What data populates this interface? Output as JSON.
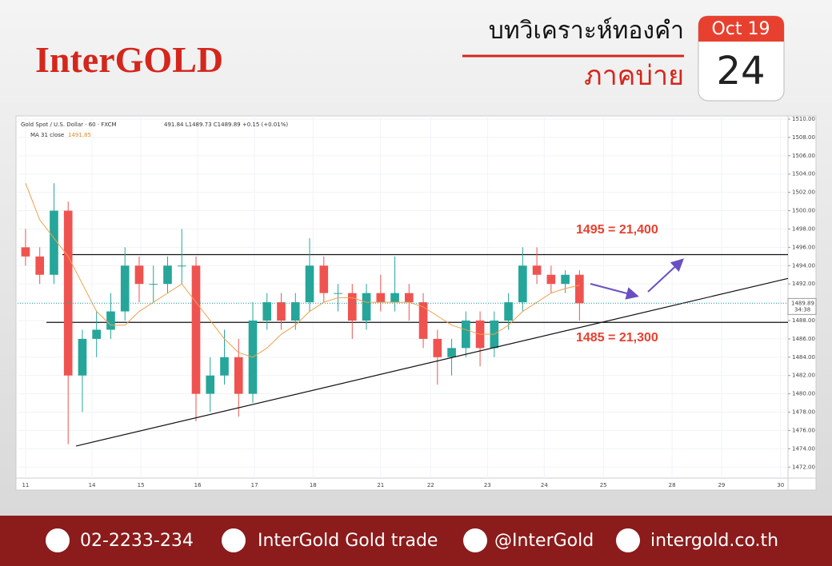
{
  "brand": "InterGOLD",
  "heading": "บทวิเคราะห์ทองคำ",
  "subheading": "ภาคบ่าย",
  "date": {
    "month": "Oct 19",
    "day": "24"
  },
  "footer": {
    "phone": "02-2233-234",
    "facebook": "InterGold Gold trade",
    "line": "@InterGold",
    "website": "intergold.co.th"
  },
  "chart_data": {
    "type": "candlestick",
    "symbol": "Gold Spot / U.S. Dollar · 60 · FXCM",
    "ohlc_text": "491.84 L1489.73 C1489.89 +0.15 (+0.01%)",
    "ma_label": "MA 31 close",
    "ma_last": 1491.85,
    "last_price": 1489.89,
    "countdown": "34:38",
    "up_color": "#26a69a",
    "down_color": "#ef5350",
    "ma_color": "#f0a04b",
    "x": [
      0,
      0.25,
      0.5,
      0.75,
      1,
      1.25,
      1.5,
      1.75,
      2,
      2.25,
      2.5,
      2.75,
      3,
      3.25,
      3.5,
      3.75,
      4,
      4.25,
      4.5,
      4.75,
      5,
      5.25,
      5.5,
      5.75,
      6,
      6.25,
      6.5,
      6.75,
      7,
      7.25,
      7.5,
      7.75,
      8,
      8.25,
      8.5,
      8.75,
      9,
      9.25,
      9.5,
      9.75
    ],
    "open": [
      1496,
      1495,
      1493,
      1500,
      1482,
      1486,
      1487,
      1489,
      1494,
      1492,
      1492,
      1494,
      1494,
      1480,
      1482,
      1484,
      1480,
      1488,
      1490,
      1488,
      1490,
      1494,
      1491,
      1491,
      1488,
      1491,
      1490,
      1491,
      1490,
      1486,
      1484,
      1485,
      1488,
      1485,
      1488,
      1490,
      1494,
      1493,
      1492,
      1493
    ],
    "high": [
      1498,
      1496,
      1503,
      1501,
      1487,
      1489,
      1491,
      1496,
      1495,
      1494,
      1495,
      1498,
      1495,
      1484,
      1487,
      1486,
      1490,
      1491,
      1491,
      1491,
      1497,
      1495,
      1492,
      1492,
      1492,
      1493,
      1495,
      1492,
      1491,
      1487,
      1486,
      1489,
      1489,
      1489,
      1491,
      1496,
      1496,
      1494,
      1493.5,
      1493.5
    ],
    "low": [
      1494,
      1492,
      1492,
      1474.5,
      1478,
      1484,
      1486,
      1488,
      1490,
      1490,
      1491,
      1492,
      1477,
      1478,
      1481,
      1477.5,
      1479,
      1487,
      1487,
      1487,
      1489,
      1490,
      1489,
      1486,
      1487,
      1489,
      1489,
      1488,
      1485,
      1481,
      1482,
      1484,
      1483,
      1484,
      1487,
      1489,
      1492,
      1491,
      1491,
      1488
    ],
    "close": [
      1495,
      1493,
      1500,
      1482,
      1486,
      1487,
      1489,
      1494,
      1492,
      1492,
      1494,
      1494,
      1480,
      1482,
      1484,
      1480,
      1488,
      1490,
      1488,
      1490,
      1494,
      1491,
      1491,
      1488,
      1491,
      1490,
      1491,
      1490,
      1486,
      1484,
      1485,
      1488,
      1485,
      1488,
      1490,
      1494,
      1493,
      1492,
      1493,
      1489.89
    ],
    "ma_values": [
      1503,
      1499,
      1497,
      1495,
      1492,
      1489,
      1487.5,
      1487.5,
      1489,
      1490,
      1491,
      1492,
      1490,
      1488,
      1486,
      1484.5,
      1484,
      1485,
      1486.5,
      1487.5,
      1489,
      1490,
      1490.5,
      1490.5,
      1490,
      1490,
      1490,
      1490,
      1489.5,
      1488.5,
      1487.5,
      1487,
      1486.5,
      1486.5,
      1487.5,
      1489,
      1490,
      1491,
      1491.5,
      1491.85
    ],
    "hlines": [
      1495.2,
      1487.8
    ],
    "trendline": {
      "x": [
        0.89,
        13.42
      ],
      "y": [
        1474.3,
        1492.6
      ]
    },
    "annotations": [
      "1495 = 21,400",
      "1485 = 21,300"
    ],
    "xlim": [
      -0.14,
      13.42
    ],
    "ylim": [
      1470.8,
      1510.35
    ],
    "xticks": [
      {
        "value": 0,
        "label": "11"
      },
      {
        "value": 1.17,
        "label": "14"
      },
      {
        "value": 2.03,
        "label": "15"
      },
      {
        "value": 3.03,
        "label": "16"
      },
      {
        "value": 4.03,
        "label": "17"
      },
      {
        "value": 5.06,
        "label": "18"
      },
      {
        "value": 6.25,
        "label": "21"
      },
      {
        "value": 7.13,
        "label": "22"
      },
      {
        "value": 8.13,
        "label": "23"
      },
      {
        "value": 9.13,
        "label": "24"
      },
      {
        "value": 10.17,
        "label": "25"
      },
      {
        "value": 11.38,
        "label": "28"
      },
      {
        "value": 12.25,
        "label": "29"
      },
      {
        "value": 13.29,
        "label": "30"
      }
    ],
    "yticks": [
      {
        "value": 1472,
        "label": "1472.00"
      },
      {
        "value": 1474,
        "label": "1474.00"
      },
      {
        "value": 1476,
        "label": "1476.00"
      },
      {
        "value": 1478,
        "label": "1478.00"
      },
      {
        "value": 1480,
        "label": "1480.00"
      },
      {
        "value": 1482,
        "label": "1482.00"
      },
      {
        "value": 1484,
        "label": "1484.00"
      },
      {
        "value": 1486,
        "label": "1486.00"
      },
      {
        "value": 1488,
        "label": "1488.00"
      },
      {
        "value": 1490,
        "label": "1490.00"
      },
      {
        "value": 1492,
        "label": "1492.00"
      },
      {
        "value": 1494,
        "label": "1494.00"
      },
      {
        "value": 1496,
        "label": "1496.00"
      },
      {
        "value": 1498,
        "label": "1498.00"
      },
      {
        "value": 1500,
        "label": "1500.00"
      },
      {
        "value": 1502,
        "label": "1502.00"
      },
      {
        "value": 1504,
        "label": "1504.00"
      },
      {
        "value": 1506,
        "label": "1506.00"
      },
      {
        "value": 1508,
        "label": "1508.00"
      },
      {
        "value": 1510,
        "label": "1510.00"
      }
    ],
    "grid": true
  }
}
